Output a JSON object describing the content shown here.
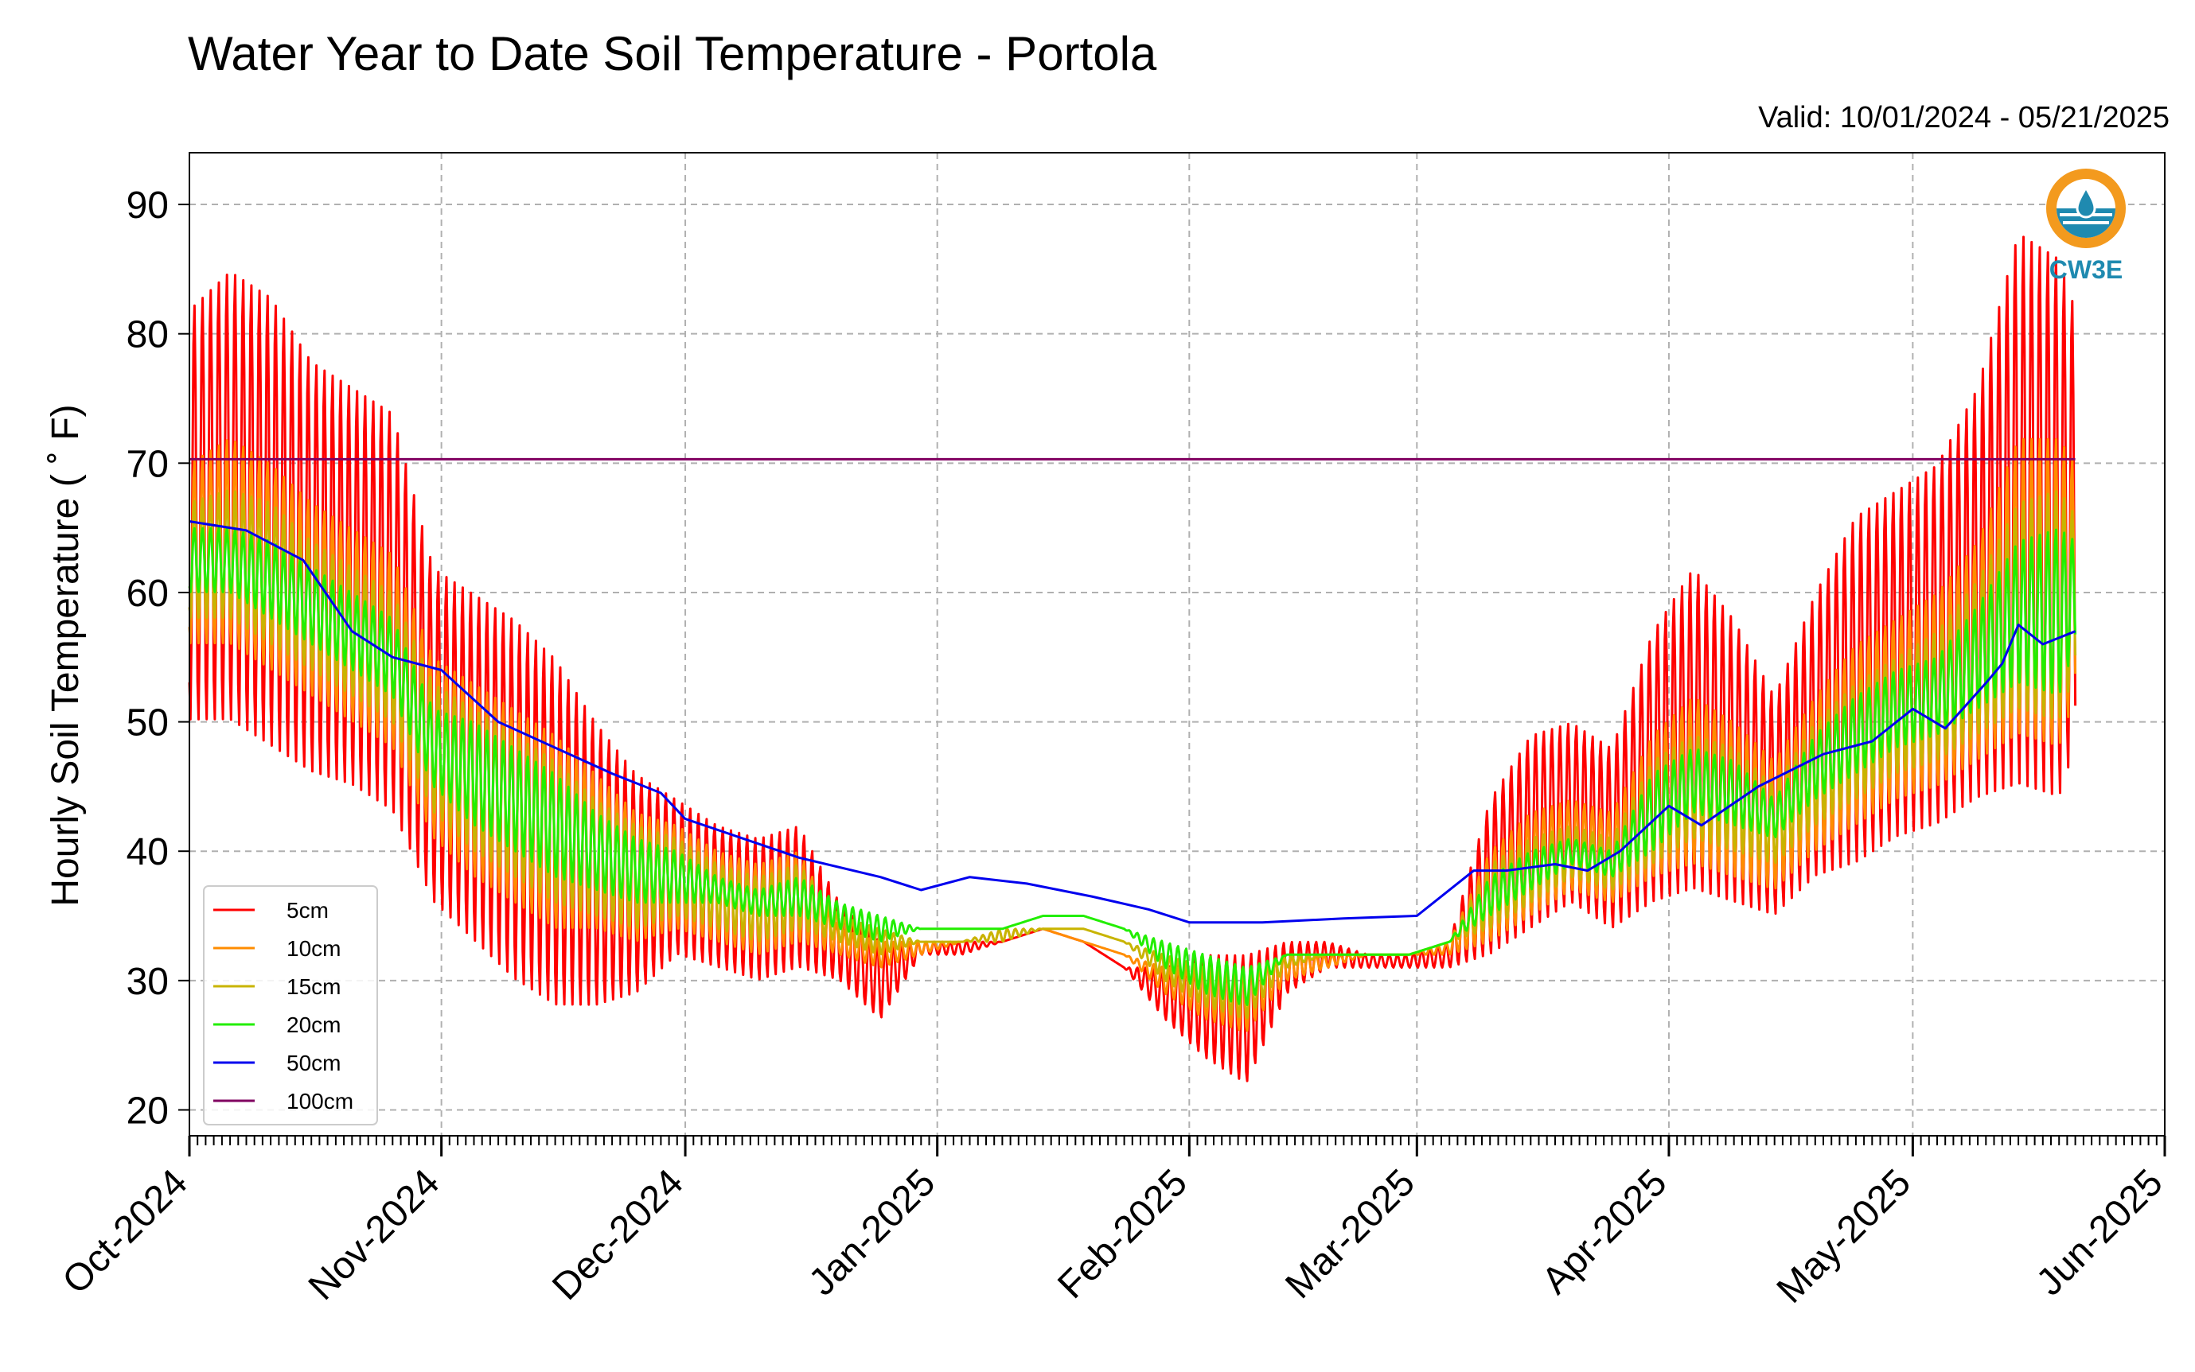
{
  "title": "Water Year to Date Soil Temperature - Portola",
  "valid": "Valid: 10/01/2024 - 05/21/2025",
  "logo_text": "CW3E",
  "chart_data": {
    "type": "line",
    "title": "Water Year to Date Soil Temperature - Portola",
    "subtitle": "Valid: 10/01/2024 - 05/21/2025",
    "xlabel": "",
    "ylabel": "Hourly Soil Temperature (°F)",
    "ylabel_text": "Hourly Soil Temperature ( ˚ F)",
    "x_start": "2024-10-01",
    "x_end": "2025-05-21",
    "xlim": [
      "2024-10-01",
      "2025-06-01"
    ],
    "ylim": [
      18,
      94
    ],
    "yticks": [
      20,
      30,
      40,
      50,
      60,
      70,
      80,
      90
    ],
    "xticks": [
      {
        "date": "2024-10-01",
        "label": "Oct-2024"
      },
      {
        "date": "2024-11-01",
        "label": "Nov-2024"
      },
      {
        "date": "2024-12-01",
        "label": "Dec-2024"
      },
      {
        "date": "2025-01-01",
        "label": "Jan-2025"
      },
      {
        "date": "2025-02-01",
        "label": "Feb-2025"
      },
      {
        "date": "2025-03-01",
        "label": "Mar-2025"
      },
      {
        "date": "2025-04-01",
        "label": "Apr-2025"
      },
      {
        "date": "2025-05-01",
        "label": "May-2025"
      },
      {
        "date": "2025-06-01",
        "label": "Jun-2025"
      }
    ],
    "grid": true,
    "legend_position": "lower-left",
    "series": [
      {
        "name": "5cm",
        "color": "#ff0000",
        "x": [
          "2024-10-01",
          "2024-10-06",
          "2024-10-11",
          "2024-10-16",
          "2024-10-21",
          "2024-10-26",
          "2024-10-31",
          "2024-11-05",
          "2024-11-10",
          "2024-11-15",
          "2024-11-20",
          "2024-11-25",
          "2024-11-30",
          "2024-12-05",
          "2024-12-10",
          "2024-12-15",
          "2024-12-20",
          "2024-12-25",
          "2024-12-30",
          "2025-01-04",
          "2025-01-09",
          "2025-01-14",
          "2025-01-19",
          "2025-01-24",
          "2025-01-29",
          "2025-02-03",
          "2025-02-08",
          "2025-02-13",
          "2025-02-18",
          "2025-02-23",
          "2025-02-28",
          "2025-03-05",
          "2025-03-10",
          "2025-03-15",
          "2025-03-20",
          "2025-03-25",
          "2025-03-30",
          "2025-04-04",
          "2025-04-09",
          "2025-04-14",
          "2025-04-19",
          "2025-04-24",
          "2025-04-29",
          "2025-05-04",
          "2025-05-09",
          "2025-05-14",
          "2025-05-19",
          "2025-05-21"
        ],
        "lo": [
          50,
          50,
          48,
          46,
          45,
          43,
          36,
          33,
          30,
          28,
          28,
          29,
          32,
          31,
          30,
          31,
          30,
          27,
          32,
          32,
          33,
          34,
          33,
          31,
          27,
          24,
          22,
          29,
          31,
          31,
          31,
          31,
          32,
          34,
          36,
          34,
          36,
          37,
          36,
          35,
          38,
          39,
          41,
          42,
          44,
          45,
          44,
          48
        ],
        "hi": [
          82,
          85,
          83,
          78,
          76,
          74,
          62,
          60,
          58,
          55,
          50,
          46,
          44,
          42,
          41,
          42,
          36,
          33,
          33,
          33,
          33,
          34,
          33,
          31,
          31,
          32,
          32,
          33,
          33,
          32,
          32,
          33,
          44,
          49,
          50,
          48,
          57,
          62,
          58,
          52,
          60,
          66,
          68,
          70,
          76,
          88,
          86,
          82
        ]
      },
      {
        "name": "10cm",
        "color": "#ff8c00",
        "x": [
          "2024-10-01",
          "2024-10-06",
          "2024-10-11",
          "2024-10-16",
          "2024-10-21",
          "2024-10-26",
          "2024-10-31",
          "2024-11-05",
          "2024-11-10",
          "2024-11-15",
          "2024-11-20",
          "2024-11-25",
          "2024-11-30",
          "2024-12-05",
          "2024-12-10",
          "2024-12-15",
          "2024-12-20",
          "2024-12-25",
          "2024-12-30",
          "2025-01-04",
          "2025-01-09",
          "2025-01-14",
          "2025-01-19",
          "2025-01-24",
          "2025-01-29",
          "2025-02-03",
          "2025-02-08",
          "2025-02-13",
          "2025-02-18",
          "2025-02-23",
          "2025-02-28",
          "2025-03-05",
          "2025-03-10",
          "2025-03-15",
          "2025-03-20",
          "2025-03-25",
          "2025-03-30",
          "2025-04-04",
          "2025-04-09",
          "2025-04-14",
          "2025-04-19",
          "2025-04-24",
          "2025-04-29",
          "2025-05-04",
          "2025-05-09",
          "2025-05-14",
          "2025-05-19",
          "2025-05-21"
        ],
        "lo": [
          56,
          56,
          54,
          52,
          50,
          48,
          41,
          38,
          36,
          34,
          34,
          33,
          34,
          33,
          32,
          33,
          32,
          31,
          32,
          33,
          33,
          34,
          33,
          32,
          29,
          27,
          26,
          30,
          31,
          32,
          32,
          32,
          33,
          35,
          37,
          36,
          38,
          39,
          38,
          37,
          40,
          42,
          44,
          45,
          47,
          49,
          48,
          52
        ],
        "hi": [
          70,
          72,
          70,
          67,
          65,
          63,
          55,
          53,
          51,
          49,
          46,
          43,
          42,
          40,
          39,
          40,
          34,
          33,
          33,
          33,
          34,
          34,
          33,
          32,
          31,
          31,
          31,
          32,
          32,
          32,
          32,
          33,
          40,
          43,
          44,
          43,
          49,
          52,
          50,
          47,
          52,
          56,
          58,
          60,
          64,
          72,
          72,
          70
        ]
      },
      {
        "name": "15cm",
        "color": "#c8b400",
        "x": [
          "2024-10-01",
          "2024-10-06",
          "2024-10-11",
          "2024-10-16",
          "2024-10-21",
          "2024-10-26",
          "2024-10-31",
          "2024-11-05",
          "2024-11-10",
          "2024-11-15",
          "2024-11-20",
          "2024-11-25",
          "2024-11-30",
          "2024-12-05",
          "2024-12-10",
          "2024-12-15",
          "2024-12-20",
          "2024-12-25",
          "2024-12-30",
          "2025-01-04",
          "2025-01-09",
          "2025-01-14",
          "2025-01-19",
          "2025-01-24",
          "2025-01-29",
          "2025-02-03",
          "2025-02-08",
          "2025-02-13",
          "2025-02-18",
          "2025-02-23",
          "2025-02-28",
          "2025-03-05",
          "2025-03-10",
          "2025-03-15",
          "2025-03-20",
          "2025-03-25",
          "2025-03-30",
          "2025-04-04",
          "2025-04-09",
          "2025-04-14",
          "2025-04-19",
          "2025-04-24",
          "2025-04-29",
          "2025-05-04",
          "2025-05-09",
          "2025-05-14",
          "2025-05-19",
          "2025-05-21"
        ],
        "lo": [
          58,
          58,
          56,
          54,
          52,
          50,
          43,
          40,
          38,
          36,
          35,
          34,
          35,
          34,
          33,
          34,
          33,
          32,
          33,
          33,
          33,
          34,
          34,
          33,
          30,
          28,
          27,
          31,
          32,
          32,
          32,
          33,
          34,
          36,
          38,
          37,
          39,
          41,
          40,
          39,
          42,
          44,
          46,
          47,
          49,
          51,
          50,
          54
        ],
        "hi": [
          67,
          68,
          67,
          64,
          62,
          60,
          53,
          51,
          49,
          47,
          44,
          42,
          41,
          39,
          38,
          39,
          35,
          34,
          33,
          33,
          34,
          34,
          34,
          33,
          32,
          31,
          31,
          32,
          32,
          32,
          32,
          33,
          39,
          41,
          42,
          41,
          47,
          49,
          48,
          45,
          50,
          53,
          55,
          57,
          61,
          67,
          68,
          66
        ]
      },
      {
        "name": "20cm",
        "color": "#22ee00",
        "x": [
          "2024-10-01",
          "2024-10-06",
          "2024-10-11",
          "2024-10-16",
          "2024-10-21",
          "2024-10-26",
          "2024-10-31",
          "2024-11-05",
          "2024-11-10",
          "2024-11-15",
          "2024-11-20",
          "2024-11-25",
          "2024-11-30",
          "2024-12-05",
          "2024-12-10",
          "2024-12-15",
          "2024-12-20",
          "2024-12-25",
          "2024-12-30",
          "2025-01-04",
          "2025-01-09",
          "2025-01-14",
          "2025-01-19",
          "2025-01-24",
          "2025-01-29",
          "2025-02-03",
          "2025-02-08",
          "2025-02-13",
          "2025-02-18",
          "2025-02-23",
          "2025-02-28",
          "2025-03-05",
          "2025-03-10",
          "2025-03-15",
          "2025-03-20",
          "2025-03-25",
          "2025-03-30",
          "2025-04-04",
          "2025-04-09",
          "2025-04-14",
          "2025-04-19",
          "2025-04-24",
          "2025-04-29",
          "2025-05-04",
          "2025-05-09",
          "2025-05-14",
          "2025-05-19",
          "2025-05-21"
        ],
        "lo": [
          60,
          60,
          58,
          56,
          54,
          52,
          45,
          42,
          40,
          38,
          37,
          36,
          36,
          36,
          35,
          35,
          34,
          33,
          34,
          34,
          34,
          35,
          35,
          34,
          31,
          29,
          28,
          32,
          32,
          32,
          32,
          33,
          35,
          37,
          39,
          38,
          40,
          43,
          42,
          41,
          44,
          46,
          48,
          49,
          51,
          53,
          52,
          56
        ],
        "hi": [
          65,
          65,
          64,
          62,
          60,
          58,
          51,
          50,
          48,
          46,
          43,
          41,
          40,
          38,
          37,
          38,
          36,
          35,
          34,
          34,
          34,
          35,
          35,
          34,
          33,
          32,
          31,
          32,
          32,
          32,
          32,
          33,
          38,
          40,
          41,
          40,
          46,
          48,
          47,
          44,
          49,
          52,
          54,
          55,
          59,
          64,
          65,
          64
        ]
      },
      {
        "name": "50cm",
        "color": "#0000ee",
        "x": [
          "2024-10-01",
          "2024-10-08",
          "2024-10-15",
          "2024-10-21",
          "2024-10-26",
          "2024-11-01",
          "2024-11-08",
          "2024-11-15",
          "2024-11-22",
          "2024-11-28",
          "2024-12-01",
          "2024-12-08",
          "2024-12-15",
          "2024-12-25",
          "2024-12-30",
          "2025-01-05",
          "2025-01-12",
          "2025-01-20",
          "2025-01-27",
          "2025-02-01",
          "2025-02-10",
          "2025-02-20",
          "2025-03-01",
          "2025-03-08",
          "2025-03-12",
          "2025-03-18",
          "2025-03-22",
          "2025-03-26",
          "2025-04-01",
          "2025-04-05",
          "2025-04-12",
          "2025-04-20",
          "2025-04-26",
          "2025-05-01",
          "2025-05-05",
          "2025-05-10",
          "2025-05-12",
          "2025-05-14",
          "2025-05-17",
          "2025-05-21"
        ],
        "y": [
          65.5,
          64.8,
          62.5,
          57,
          55,
          54,
          50,
          48,
          46,
          44.5,
          42.5,
          41,
          39.5,
          38,
          37,
          38,
          37.5,
          36.5,
          35.5,
          34.5,
          34.5,
          34.8,
          35,
          38.5,
          38.5,
          39,
          38.5,
          40,
          43.5,
          42,
          45,
          47.5,
          48.5,
          51,
          49.5,
          53,
          54.5,
          57.5,
          56,
          57
        ]
      },
      {
        "name": "100cm",
        "color": "#800060",
        "x": [
          "2024-10-01",
          "2025-05-21"
        ],
        "y": [
          70.3,
          70.3
        ]
      }
    ]
  }
}
